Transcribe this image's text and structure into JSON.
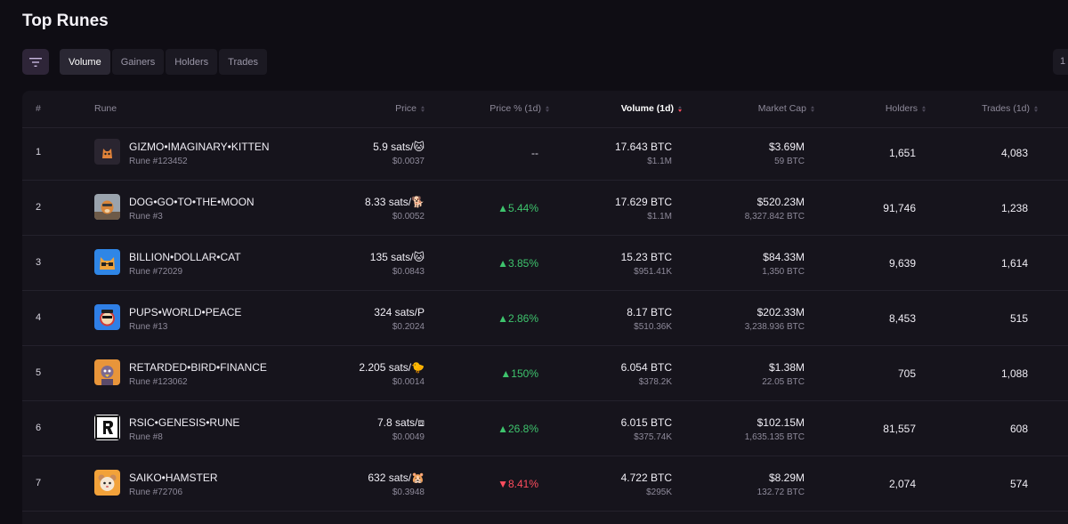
{
  "page_title": "Top Runes",
  "tabs": [
    {
      "label": "Volume",
      "active": true
    },
    {
      "label": "Gainers",
      "active": false
    },
    {
      "label": "Holders",
      "active": false
    },
    {
      "label": "Trades",
      "active": false
    }
  ],
  "right_stub_label": "1",
  "columns": {
    "index": "#",
    "rune": "Rune",
    "price": "Price",
    "price_pct": "Price % (1d)",
    "volume": "Volume (1d)",
    "market_cap": "Market Cap",
    "holders": "Holders",
    "trades": "Trades (1d)"
  },
  "colors": {
    "up": "#3ec46d",
    "down": "#ff4d5e",
    "accent_sort": "#ff4d5e"
  },
  "rows": [
    {
      "index": "1",
      "name": "GIZMO•IMAGINARY•KITTEN",
      "rune_num": "Rune #123452",
      "price": "5.9 sats/🐱",
      "price_usd": "$0.0037",
      "pct": "--",
      "pct_dir": "flat",
      "volume": "17.643 BTC",
      "volume_usd": "$1.1M",
      "mcap": "$3.69M",
      "mcap_btc": "59 BTC",
      "holders": "1,651",
      "trades": "4,083",
      "icon": "kitten-avatar"
    },
    {
      "index": "2",
      "name": "DOG•GO•TO•THE•MOON",
      "rune_num": "Rune #3",
      "price": "8.33 sats/🐕",
      "price_usd": "$0.0052",
      "pct": "▲5.44%",
      "pct_dir": "up",
      "volume": "17.629 BTC",
      "volume_usd": "$1.1M",
      "mcap": "$520.23M",
      "mcap_btc": "8,327.842 BTC",
      "holders": "91,746",
      "trades": "1,238",
      "icon": "dog-avatar"
    },
    {
      "index": "3",
      "name": "BILLION•DOLLAR•CAT",
      "rune_num": "Rune #72029",
      "price": "135 sats/🐱",
      "price_usd": "$0.0843",
      "pct": "▲3.85%",
      "pct_dir": "up",
      "volume": "15.23 BTC",
      "volume_usd": "$951.41K",
      "mcap": "$84.33M",
      "mcap_btc": "1,350 BTC",
      "holders": "9,639",
      "trades": "1,614",
      "icon": "cat-avatar"
    },
    {
      "index": "4",
      "name": "PUPS•WORLD•PEACE",
      "rune_num": "Rune #13",
      "price": "324 sats/P",
      "price_usd": "$0.2024",
      "pct": "▲2.86%",
      "pct_dir": "up",
      "volume": "8.17 BTC",
      "volume_usd": "$510.36K",
      "mcap": "$202.33M",
      "mcap_btc": "3,238.936 BTC",
      "holders": "8,453",
      "trades": "515",
      "icon": "pups-avatar"
    },
    {
      "index": "5",
      "name": "RETARDED•BIRD•FINANCE",
      "rune_num": "Rune #123062",
      "price": "2.205 sats/🐤",
      "price_usd": "$0.0014",
      "pct": "▲150%",
      "pct_dir": "up",
      "volume": "6.054 BTC",
      "volume_usd": "$378.2K",
      "mcap": "$1.38M",
      "mcap_btc": "22.05 BTC",
      "holders": "705",
      "trades": "1,088",
      "icon": "bird-avatar"
    },
    {
      "index": "6",
      "name": "RSIC•GENESIS•RUNE",
      "rune_num": "Rune #8",
      "price": "7.8 sats/⧈",
      "price_usd": "$0.0049",
      "pct": "▲26.8%",
      "pct_dir": "up",
      "volume": "6.015 BTC",
      "volume_usd": "$375.74K",
      "mcap": "$102.15M",
      "mcap_btc": "1,635.135 BTC",
      "holders": "81,557",
      "trades": "608",
      "icon": "rsic-avatar"
    },
    {
      "index": "7",
      "name": "SAIKO•HAMSTER",
      "rune_num": "Rune #72706",
      "price": "632 sats/🐹",
      "price_usd": "$0.3948",
      "pct": "▼8.41%",
      "pct_dir": "down",
      "volume": "4.722 BTC",
      "volume_usd": "$295K",
      "mcap": "$8.29M",
      "mcap_btc": "132.72 BTC",
      "holders": "2,074",
      "trades": "574",
      "icon": "hamster-avatar"
    }
  ]
}
